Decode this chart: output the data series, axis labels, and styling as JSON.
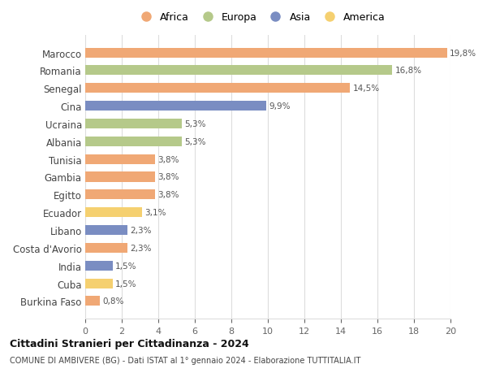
{
  "countries": [
    "Marocco",
    "Romania",
    "Senegal",
    "Cina",
    "Ucraina",
    "Albania",
    "Tunisia",
    "Gambia",
    "Egitto",
    "Ecuador",
    "Libano",
    "Costa d'Avorio",
    "India",
    "Cuba",
    "Burkina Faso"
  ],
  "values": [
    19.8,
    16.8,
    14.5,
    9.9,
    5.3,
    5.3,
    3.8,
    3.8,
    3.8,
    3.1,
    2.3,
    2.3,
    1.5,
    1.5,
    0.8
  ],
  "labels": [
    "19,8%",
    "16,8%",
    "14,5%",
    "9,9%",
    "5,3%",
    "5,3%",
    "3,8%",
    "3,8%",
    "3,8%",
    "3,1%",
    "2,3%",
    "2,3%",
    "1,5%",
    "1,5%",
    "0,8%"
  ],
  "continents": [
    "Africa",
    "Europa",
    "Africa",
    "Asia",
    "Europa",
    "Europa",
    "Africa",
    "Africa",
    "Africa",
    "America",
    "Asia",
    "Africa",
    "Asia",
    "America",
    "Africa"
  ],
  "colors": {
    "Africa": "#F0A875",
    "Europa": "#B5C98A",
    "Asia": "#7A8DC2",
    "America": "#F5D070"
  },
  "legend_order": [
    "Africa",
    "Europa",
    "Asia",
    "America"
  ],
  "xlim": [
    0,
    20
  ],
  "xticks": [
    0,
    2,
    4,
    6,
    8,
    10,
    12,
    14,
    16,
    18,
    20
  ],
  "title": "Cittadini Stranieri per Cittadinanza - 2024",
  "subtitle": "COMUNE DI AMBIVERE (BG) - Dati ISTAT al 1° gennaio 2024 - Elaborazione TUTTITALIA.IT",
  "background_color": "#ffffff",
  "grid_color": "#dddddd"
}
